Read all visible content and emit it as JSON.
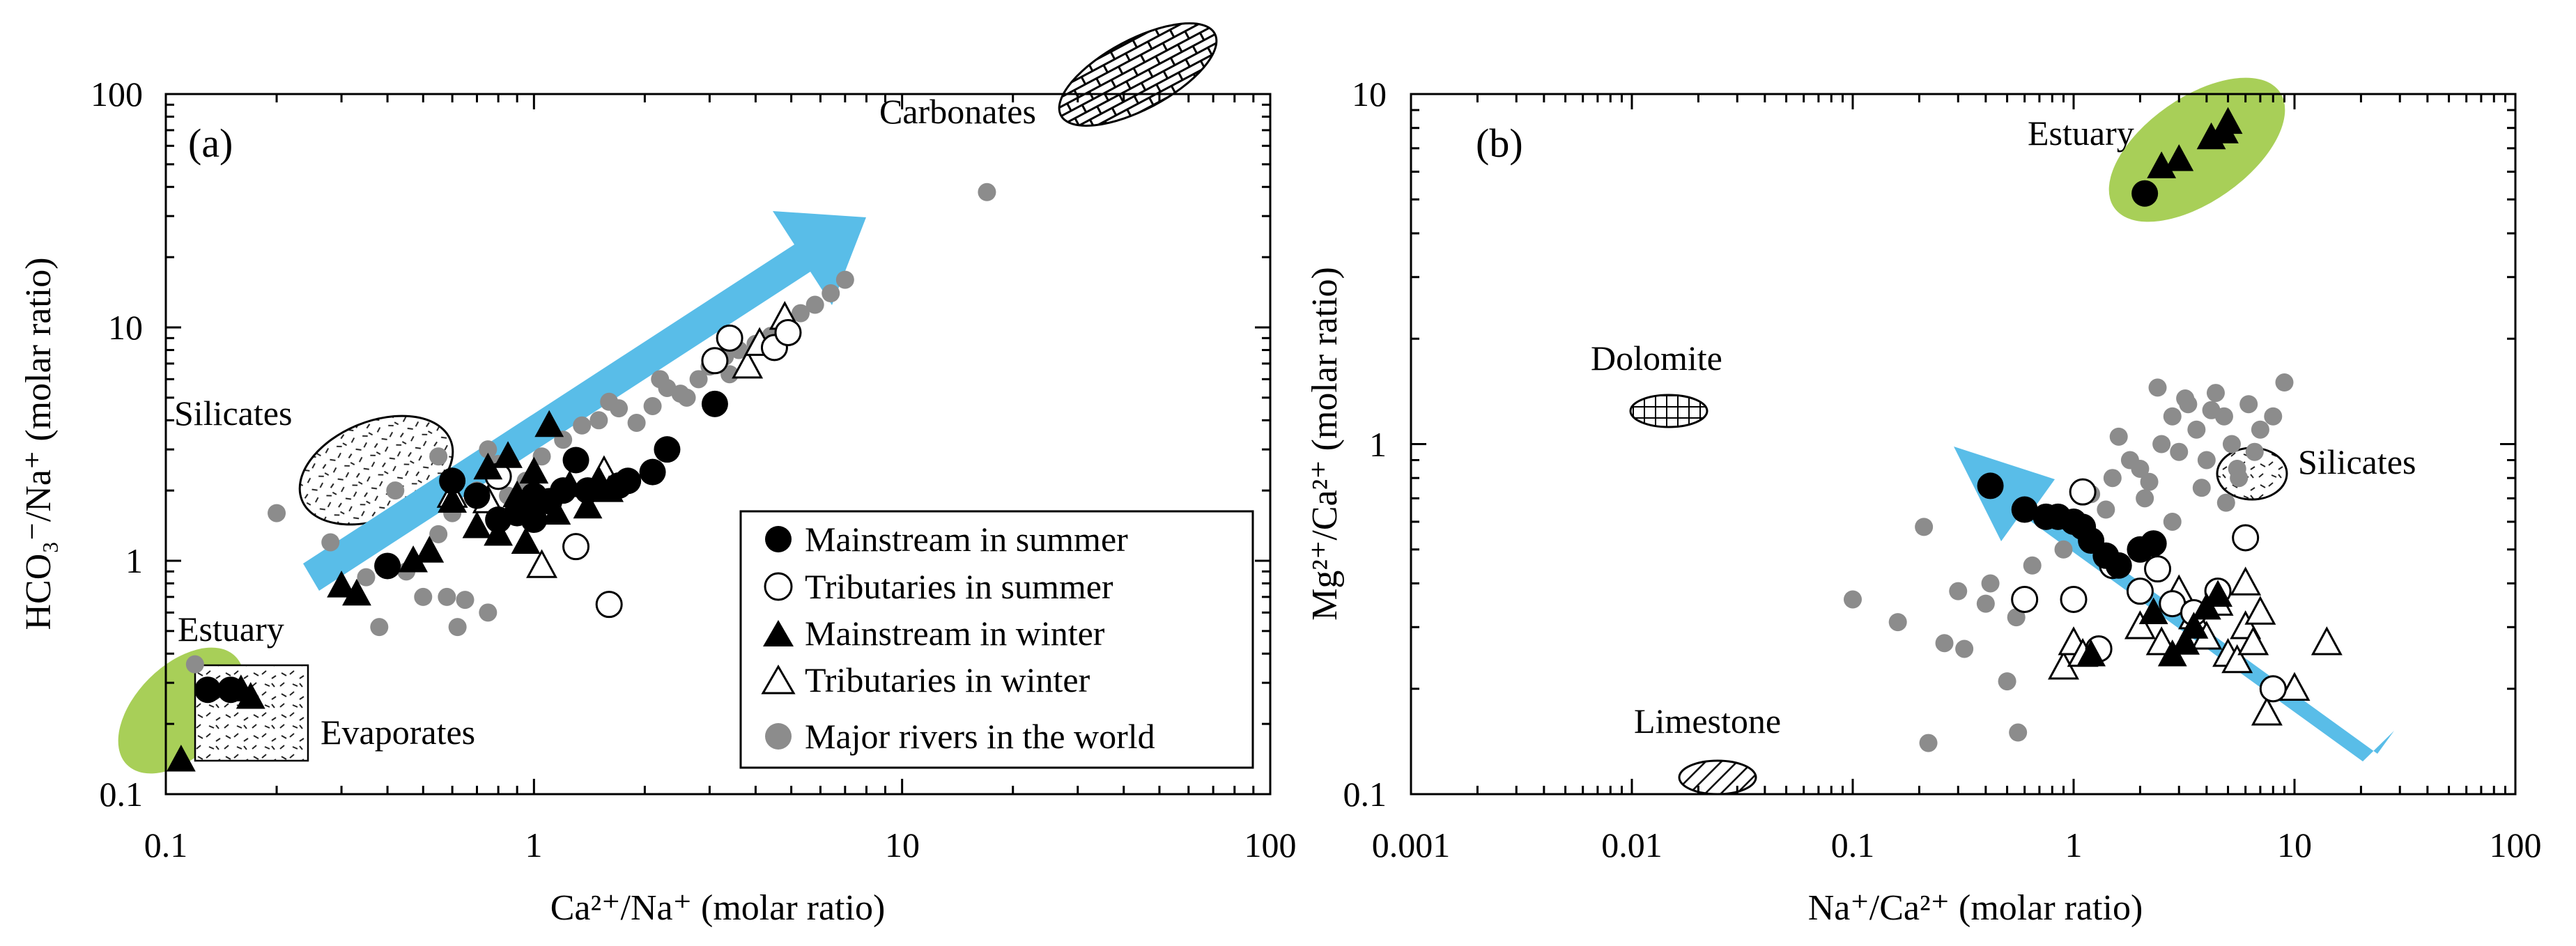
{
  "chart_data": [
    {
      "panel": "(a)",
      "type": "scatter",
      "xscale": "log",
      "yscale": "log",
      "xlim": [
        0.1,
        100
      ],
      "ylim": [
        0.1,
        100
      ],
      "xlabel": "Ca²⁺/Na⁺ (molar ratio)",
      "ylabel": "HCO₃⁻/Na⁺ (molar ratio)",
      "xtick_labels": [
        "0.1",
        "1",
        "10",
        "100"
      ],
      "ytick_labels": [
        "0.1",
        "1",
        "10",
        "100"
      ],
      "legend": [
        {
          "name": "Mainstream in summer",
          "marker": "filled-circle"
        },
        {
          "name": "Tributaries in summer",
          "marker": "open-circle"
        },
        {
          "name": "Mainstream in winter",
          "marker": "filled-triangle"
        },
        {
          "name": "Tributaries in winter",
          "marker": "open-triangle"
        },
        {
          "name": "Major rivers in the world",
          "marker": "grey-circle"
        }
      ],
      "legend_position": "bottom-right",
      "annotations": [
        "Carbonates",
        "Silicates",
        "Estuary",
        "Evaporates"
      ],
      "series": [
        {
          "name": "Mainstream in summer",
          "x": [
            0.13,
            0.15,
            0.4,
            0.6,
            0.7,
            0.8,
            0.9,
            1.0,
            1.0,
            1.1,
            1.2,
            1.3,
            1.4,
            1.7,
            1.8,
            2.1,
            2.3,
            3.1
          ],
          "y": [
            0.28,
            0.28,
            0.95,
            2.2,
            1.9,
            1.5,
            1.6,
            1.9,
            1.5,
            1.8,
            2.0,
            2.7,
            2.0,
            2.1,
            2.2,
            2.4,
            3.0,
            4.7
          ]
        },
        {
          "name": "Tributaries in summer",
          "x": [
            0.8,
            1.3,
            1.6,
            3.1,
            3.4,
            4.5,
            4.9
          ],
          "y": [
            2.3,
            1.15,
            0.65,
            7.2,
            9.0,
            8.2,
            9.5
          ]
        },
        {
          "name": "Mainstream in winter",
          "x": [
            0.11,
            0.16,
            0.17,
            0.3,
            0.33,
            0.47,
            0.52,
            0.6,
            0.7,
            0.75,
            0.8,
            0.85,
            0.9,
            0.95,
            1.0,
            1.1,
            1.15,
            1.25,
            1.4,
            1.5,
            1.6
          ],
          "y": [
            0.14,
            0.28,
            0.26,
            0.78,
            0.72,
            1.0,
            1.1,
            1.8,
            1.4,
            2.5,
            1.3,
            2.8,
            1.9,
            1.2,
            2.4,
            3.8,
            1.6,
            2.1,
            1.7,
            2.2,
            2.0
          ]
        },
        {
          "name": "Tributaries in winter",
          "x": [
            0.6,
            0.75,
            1.05,
            1.55,
            3.8,
            4.1,
            4.8
          ],
          "y": [
            1.9,
            1.8,
            0.95,
            2.4,
            6.8,
            8.5,
            11.0
          ]
        },
        {
          "name": "Major rivers in the world",
          "x": [
            0.12,
            0.2,
            0.28,
            0.35,
            0.38,
            0.42,
            0.45,
            0.5,
            0.55,
            0.6,
            0.65,
            0.7,
            0.75,
            0.8,
            0.85,
            0.95,
            1.05,
            1.2,
            1.35,
            1.5,
            1.7,
            1.9,
            2.1,
            2.3,
            2.5,
            2.8,
            3.0,
            3.3,
            3.6,
            4.0,
            4.4,
            4.8,
            5.3,
            5.8,
            6.4,
            7.0,
            1.6,
            2.2,
            2.6,
            3.4,
            0.55,
            0.62,
            0.58,
            0.75,
            17.0
          ],
          "y": [
            0.36,
            1.6,
            1.2,
            0.85,
            0.52,
            2.0,
            0.9,
            0.7,
            1.3,
            1.6,
            0.68,
            2.0,
            0.6,
            2.6,
            1.9,
            2.2,
            2.8,
            3.3,
            3.8,
            4.0,
            4.5,
            3.9,
            4.6,
            5.5,
            5.2,
            6.0,
            6.8,
            7.5,
            8.0,
            8.5,
            9.2,
            10.5,
            11.5,
            12.5,
            14.0,
            16.0,
            4.8,
            6.0,
            5.0,
            6.3,
            2.8,
            0.52,
            0.7,
            3.0,
            38.0
          ]
        }
      ]
    },
    {
      "panel": "(b)",
      "type": "scatter",
      "xscale": "log",
      "yscale": "log",
      "xlim": [
        0.001,
        100
      ],
      "ylim": [
        0.1,
        10
      ],
      "xlabel": "Na⁺/Ca²⁺ (molar ratio)",
      "ylabel": "Mg²⁺/Ca²⁺ (molar ratio)",
      "xtick_labels": [
        "0.001",
        "0.01",
        "0.1",
        "1",
        "10",
        "100"
      ],
      "ytick_labels": [
        "0.1",
        "1",
        "10"
      ],
      "annotations": [
        "Estuary",
        "Dolomite",
        "Silicates",
        "Limestone"
      ],
      "series": [
        {
          "name": "Mainstream in summer",
          "x": [
            0.42,
            0.6,
            0.75,
            0.85,
            1.0,
            1.1,
            1.2,
            1.4,
            1.6,
            2.0,
            2.3,
            2.1
          ],
          "y": [
            0.76,
            0.65,
            0.62,
            0.62,
            0.6,
            0.58,
            0.53,
            0.48,
            0.45,
            0.5,
            0.52,
            5.2
          ]
        },
        {
          "name": "Tributaries in summer",
          "x": [
            0.6,
            1.0,
            1.1,
            1.5,
            2.0,
            2.4,
            2.8,
            3.5,
            4.5,
            6.0,
            8.0,
            1.3
          ],
          "y": [
            0.36,
            0.36,
            0.73,
            0.45,
            0.38,
            0.44,
            0.35,
            0.33,
            0.38,
            0.54,
            0.2,
            0.26
          ]
        },
        {
          "name": "Mainstream in winter",
          "x": [
            1.2,
            2.3,
            2.8,
            3.2,
            3.5,
            4.0,
            4.5,
            2.5,
            3.0,
            4.2,
            4.8,
            5.0
          ],
          "y": [
            0.25,
            0.33,
            0.25,
            0.27,
            0.3,
            0.34,
            0.37,
            6.2,
            6.5,
            7.5,
            7.8,
            8.3
          ]
        },
        {
          "name": "Tributaries in winter",
          "x": [
            0.9,
            1.0,
            1.1,
            2.0,
            2.5,
            3.0,
            3.5,
            4.0,
            4.5,
            5.0,
            5.5,
            6.0,
            6.5,
            7.0,
            7.5,
            10.0,
            14.0,
            6.0
          ],
          "y": [
            0.23,
            0.27,
            0.25,
            0.3,
            0.27,
            0.38,
            0.32,
            0.28,
            0.35,
            0.25,
            0.24,
            0.3,
            0.27,
            0.33,
            0.17,
            0.2,
            0.27,
            0.4
          ]
        },
        {
          "name": "Major rivers in the world",
          "x": [
            0.1,
            0.16,
            0.22,
            0.26,
            0.3,
            0.4,
            0.5,
            0.56,
            0.65,
            0.9,
            1.2,
            1.5,
            1.8,
            2.0,
            2.2,
            2.5,
            2.8,
            3.0,
            3.3,
            3.6,
            4.0,
            4.4,
            4.8,
            5.2,
            5.6,
            6.2,
            7.0,
            8.0,
            9.0,
            1.6,
            2.4,
            3.2,
            4.2,
            5.5,
            1.4,
            2.1,
            2.8,
            3.8,
            4.9,
            6.6,
            0.55,
            0.21,
            0.42,
            0.32
          ],
          "y": [
            0.36,
            0.31,
            0.14,
            0.27,
            0.38,
            0.35,
            0.21,
            0.15,
            0.45,
            0.5,
            0.72,
            0.8,
            0.9,
            0.85,
            0.78,
            1.0,
            1.2,
            0.95,
            1.3,
            1.1,
            0.9,
            1.4,
            1.2,
            1.0,
            0.8,
            1.3,
            1.1,
            1.2,
            1.5,
            1.05,
            1.45,
            1.35,
            1.25,
            0.85,
            0.65,
            0.7,
            0.6,
            0.75,
            0.68,
            0.95,
            0.32,
            0.58,
            0.4,
            0.26
          ]
        }
      ]
    }
  ]
}
